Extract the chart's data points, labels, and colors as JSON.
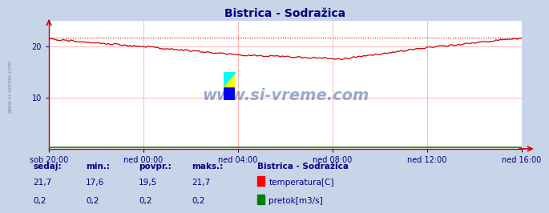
{
  "title": "Bistrica - Sodražica",
  "bg_color": "#c8d4e8",
  "plot_bg_color": "#ffffff",
  "title_color": "#000080",
  "title_fontsize": 10,
  "xlabel_color": "#000080",
  "ylim": [
    0,
    25
  ],
  "yticks": [
    10,
    20
  ],
  "xtick_labels": [
    "sob 20:00",
    "ned 00:00",
    "ned 04:00",
    "ned 08:00",
    "ned 12:00",
    "ned 16:00"
  ],
  "grid_color": "#ffaaaa",
  "temp_color": "#cc0000",
  "flow_color": "#008800",
  "temp_max": 21.7,
  "temp_min": 17.6,
  "temp_avg": 19.5,
  "temp_current": 21.7,
  "flow_max": 0.2,
  "flow_min": 0.2,
  "flow_avg": 0.2,
  "flow_current": 0.2,
  "watermark_text": "www.si-vreme.com",
  "watermark_color": "#4466aa",
  "legend_title": "Bistrica - Sodražica",
  "legend_color": "#000080",
  "sedaj_label": "sedaj:",
  "min_label": "min.:",
  "povpr_label": "povpr.:",
  "maks_label": "maks.:",
  "temp_label": "temperatura[C]",
  "flow_label": "pretok[m3/s]",
  "arrow_color": "#cc0000",
  "bottom_text_color": "#000080",
  "side_text_color": "#7090b0",
  "key_x": [
    0,
    0.2,
    0.4,
    0.62,
    0.8,
    1.0
  ],
  "key_y": [
    21.5,
    20.0,
    18.4,
    17.6,
    19.8,
    21.7
  ]
}
